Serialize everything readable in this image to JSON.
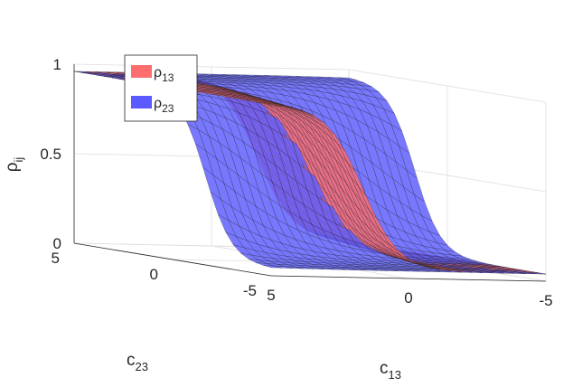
{
  "chart_data": {
    "type": "surface3d",
    "title": "",
    "zlabel": {
      "base": "ρ",
      "sub": "ij"
    },
    "xlabel": {
      "base": "c",
      "sub": "13"
    },
    "ylabel": {
      "base": "c",
      "sub": "23"
    },
    "xlim": [
      -5,
      5
    ],
    "ylim": [
      -5,
      5
    ],
    "zlim": [
      0,
      1
    ],
    "x_ticks": [
      {
        "v": 5,
        "label": "5"
      },
      {
        "v": 0,
        "label": "0"
      },
      {
        "v": -5,
        "label": "-5"
      }
    ],
    "y_ticks": [
      {
        "v": 5,
        "label": "5"
      },
      {
        "v": 0,
        "label": "0"
      },
      {
        "v": -5,
        "label": "-5"
      }
    ],
    "z_ticks": [
      {
        "v": 0,
        "label": "0"
      },
      {
        "v": 0.5,
        "label": "0.5"
      },
      {
        "v": 1,
        "label": "1"
      }
    ],
    "grid": true,
    "legend_position": "top-left",
    "series": [
      {
        "name": {
          "base": "ρ",
          "sub": "13"
        },
        "color": "#ff6e6e",
        "formula": "rho13 = 1 / (1 + exp(-1.5*c13 - 0.5*c23)) scaled to [0.04, 0.96]"
      },
      {
        "name": {
          "base": "ρ",
          "sub": "23"
        },
        "color": "#5a5aff",
        "formula": "rho23 = 1 / (1 + exp(-0.5*c13 - 1.5*c23)) scaled to [0.04, 0.96]"
      }
    ]
  }
}
